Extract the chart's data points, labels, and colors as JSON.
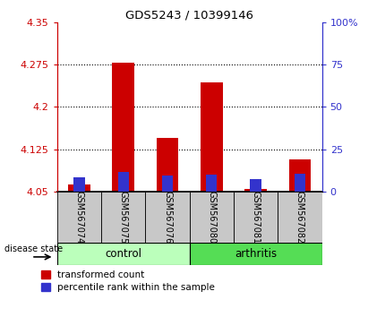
{
  "title": "GDS5243 / 10399146",
  "samples": [
    "GSM567074",
    "GSM567075",
    "GSM567076",
    "GSM567080",
    "GSM567081",
    "GSM567082"
  ],
  "red_bar_tops": [
    4.063,
    4.278,
    4.145,
    4.243,
    4.055,
    4.108
  ],
  "blue_bar_tops": [
    4.075,
    4.085,
    4.078,
    4.08,
    4.073,
    4.082
  ],
  "bar_bottom": 4.05,
  "ylim_left": [
    4.05,
    4.35
  ],
  "yticks_left": [
    4.05,
    4.125,
    4.2,
    4.275,
    4.35
  ],
  "yticklabels_left": [
    "4.05",
    "4.125",
    "4.2",
    "4.275",
    "4.35"
  ],
  "ylim_right": [
    0,
    100
  ],
  "yticks_right": [
    0,
    25,
    50,
    75,
    100
  ],
  "yticklabels_right": [
    "0",
    "25",
    "50",
    "75",
    "100%"
  ],
  "red_color": "#cc0000",
  "blue_color": "#3333cc",
  "bar_width": 0.5,
  "blue_bar_width": 0.25,
  "control_color": "#bbffbb",
  "arthritis_color": "#55dd55",
  "legend_labels": [
    "transformed count",
    "percentile rank within the sample"
  ],
  "grid_dotted_ticks": [
    4.125,
    4.2,
    4.275
  ],
  "label_area_color": "#c8c8c8",
  "group_label_text": "disease state"
}
